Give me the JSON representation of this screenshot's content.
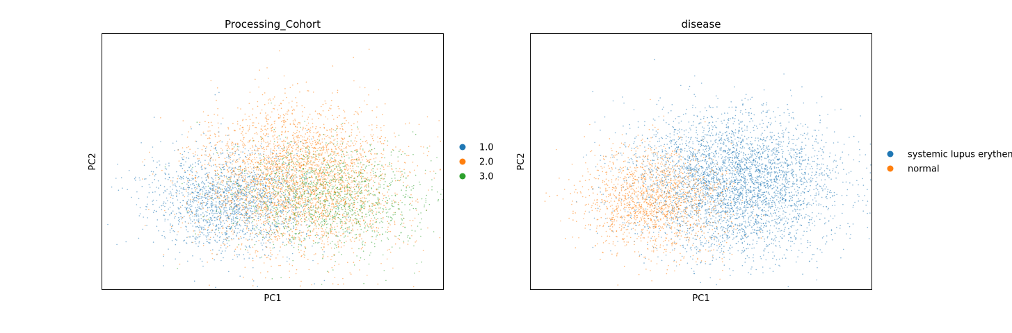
{
  "figure": {
    "background": "#ffffff"
  },
  "chart_data": [
    {
      "type": "scatter",
      "title": "Processing_Cohort",
      "xlabel": "PC1",
      "ylabel": "PC2",
      "grid": false,
      "ticks": false,
      "legend_placement": "right",
      "series": [
        {
          "name": "1.0",
          "color": "#1f77b4"
        },
        {
          "name": "2.0",
          "color": "#ff7f0e"
        },
        {
          "name": "3.0",
          "color": "#2ca02c"
        }
      ]
    },
    {
      "type": "scatter",
      "title": "disease",
      "xlabel": "PC1",
      "ylabel": "PC2",
      "grid": false,
      "ticks": false,
      "legend_placement": "right",
      "series": [
        {
          "name": "systemic lupus erythematosus",
          "color": "#1f77b4"
        },
        {
          "name": "normal",
          "color": "#ff7f0e"
        }
      ]
    }
  ]
}
